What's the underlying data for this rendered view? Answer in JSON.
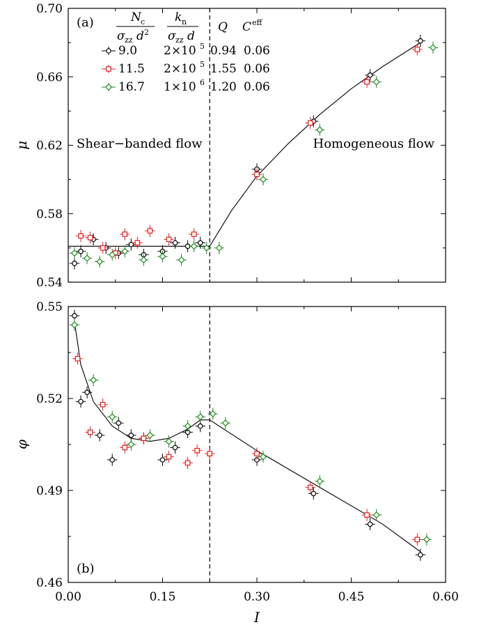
{
  "chart_data": [
    {
      "panel": "(a)",
      "type": "scatter",
      "ylabel": "μ",
      "ylim": [
        0.54,
        0.7
      ],
      "yticks": [
        "0.54",
        "0.58",
        "0.62",
        "0.66",
        "0.70"
      ],
      "xlim": [
        0.0,
        0.6
      ],
      "annotations": {
        "left": "Shear−banded flow",
        "right": "Homogeneous flow"
      },
      "vline_x": 0.225,
      "fit_curve": {
        "x": [
          0.0,
          0.225,
          0.26,
          0.3,
          0.35,
          0.4,
          0.45,
          0.5,
          0.56
        ],
        "y": [
          0.561,
          0.561,
          0.582,
          0.602,
          0.621,
          0.638,
          0.653,
          0.666,
          0.68
        ]
      },
      "legend": {
        "headers": {
          "nc_num": "N",
          "nc_sub": "c",
          "nc_den": "σ",
          "nc_den_sub": "zz",
          "nc_den_tail": "d",
          "nc_den_sup": "2",
          "kn_num": "k",
          "kn_sub": "n",
          "kn_den": "σ",
          "kn_den_sub": "zz",
          "kn_den_tail": "d",
          "q": "Q",
          "c": "C",
          "c_sup": "eff"
        },
        "rows": [
          {
            "nc": "9.0",
            "kn_base": "2×10",
            "kn_exp": "5",
            "q": "0.94",
            "c": "0.06",
            "color": "#000000",
            "marker": "circle"
          },
          {
            "nc": "11.5",
            "kn_base": "2×10",
            "kn_exp": "5",
            "q": "1.55",
            "c": "0.06",
            "color": "#e8191a",
            "marker": "square"
          },
          {
            "nc": "16.7",
            "kn_base": "1×10",
            "kn_exp": "6",
            "q": "1.20",
            "c": "0.06",
            "color": "#1b8a1b",
            "marker": "diamond"
          }
        ]
      },
      "series": [
        {
          "color": "#000000",
          "marker": "circle",
          "x": [
            0.01,
            0.02,
            0.04,
            0.06,
            0.08,
            0.1,
            0.12,
            0.15,
            0.17,
            0.19,
            0.21,
            0.3,
            0.39,
            0.48,
            0.56
          ],
          "y": [
            0.551,
            0.558,
            0.565,
            0.56,
            0.557,
            0.562,
            0.556,
            0.558,
            0.563,
            0.561,
            0.563,
            0.606,
            0.634,
            0.661,
            0.681
          ]
        },
        {
          "color": "#e8191a",
          "marker": "square",
          "x": [
            0.02,
            0.035,
            0.055,
            0.075,
            0.09,
            0.11,
            0.13,
            0.16,
            0.2,
            0.3,
            0.385,
            0.475,
            0.555
          ],
          "y": [
            0.567,
            0.566,
            0.56,
            0.557,
            0.568,
            0.563,
            0.57,
            0.565,
            0.568,
            0.603,
            0.633,
            0.657,
            0.676
          ]
        },
        {
          "color": "#1b8a1b",
          "marker": "diamond",
          "x": [
            0.01,
            0.03,
            0.05,
            0.07,
            0.09,
            0.12,
            0.15,
            0.18,
            0.2,
            0.22,
            0.24,
            0.31,
            0.4,
            0.49,
            0.58
          ],
          "y": [
            0.557,
            0.554,
            0.552,
            0.556,
            0.558,
            0.553,
            0.555,
            0.553,
            0.561,
            0.56,
            0.56,
            0.6,
            0.629,
            0.657,
            0.677
          ]
        }
      ]
    },
    {
      "panel": "(b)",
      "type": "scatter",
      "ylabel": "φ",
      "xlabel": "I",
      "ylim": [
        0.46,
        0.55
      ],
      "yticks": [
        "0.46",
        "0.49",
        "0.52",
        "0.55"
      ],
      "xlim": [
        0.0,
        0.6
      ],
      "xticks": [
        "0.00",
        "0.15",
        "0.30",
        "0.45",
        "0.60"
      ],
      "vline_x": 0.225,
      "fit_curve": {
        "x": [
          0.01,
          0.02,
          0.04,
          0.07,
          0.1,
          0.13,
          0.16,
          0.19,
          0.21,
          0.225,
          0.3,
          0.4,
          0.5,
          0.56
        ],
        "y": [
          0.545,
          0.531,
          0.519,
          0.511,
          0.507,
          0.506,
          0.507,
          0.51,
          0.513,
          0.513,
          0.503,
          0.491,
          0.479,
          0.47
        ]
      },
      "series": [
        {
          "color": "#000000",
          "marker": "circle",
          "x": [
            0.01,
            0.02,
            0.03,
            0.05,
            0.07,
            0.08,
            0.1,
            0.12,
            0.15,
            0.17,
            0.19,
            0.21,
            0.3,
            0.39,
            0.48,
            0.56
          ],
          "y": [
            0.547,
            0.519,
            0.522,
            0.508,
            0.5,
            0.512,
            0.508,
            0.507,
            0.5,
            0.504,
            0.509,
            0.511,
            0.5,
            0.489,
            0.479,
            0.469
          ]
        },
        {
          "color": "#e8191a",
          "marker": "square",
          "x": [
            0.015,
            0.035,
            0.055,
            0.09,
            0.12,
            0.16,
            0.19,
            0.205,
            0.225,
            0.3,
            0.385,
            0.475,
            0.555
          ],
          "y": [
            0.533,
            0.509,
            0.518,
            0.504,
            0.507,
            0.501,
            0.499,
            0.503,
            0.502,
            0.502,
            0.491,
            0.482,
            0.474
          ]
        },
        {
          "color": "#1b8a1b",
          "marker": "diamond",
          "x": [
            0.01,
            0.04,
            0.07,
            0.1,
            0.13,
            0.16,
            0.19,
            0.21,
            0.23,
            0.25,
            0.31,
            0.4,
            0.49,
            0.57
          ],
          "y": [
            0.544,
            0.526,
            0.514,
            0.505,
            0.508,
            0.506,
            0.511,
            0.514,
            0.515,
            0.512,
            0.501,
            0.493,
            0.482,
            0.474
          ]
        }
      ]
    }
  ]
}
